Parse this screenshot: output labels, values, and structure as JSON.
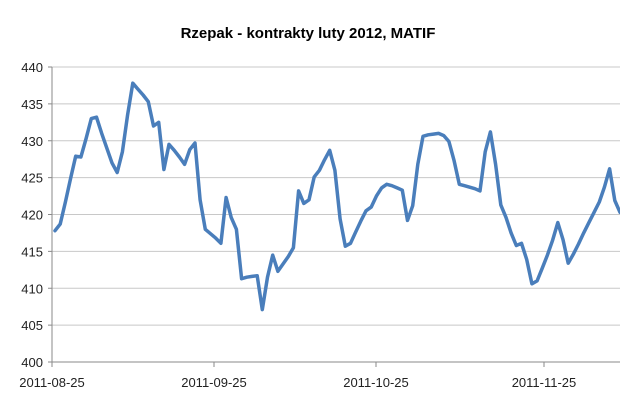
{
  "chart_data": {
    "type": "line",
    "title": "Rzepak - kontrakty luty 2012, MATIF",
    "xlabel": "",
    "ylabel": "",
    "ylim": [
      400,
      440
    ],
    "yticks": [
      400,
      405,
      410,
      415,
      420,
      425,
      430,
      435,
      440
    ],
    "xticks": [
      "2011-08-25",
      "2011-09-25",
      "2011-10-25",
      "2011-11-25"
    ],
    "grid": {
      "horizontal": true,
      "vertical": false
    },
    "legend": "none",
    "line_color": "#4a7ebb",
    "series": [
      {
        "values": [
          417.8,
          418.7,
          421.7,
          424.9,
          427.9,
          427.8,
          430.3,
          433.0,
          433.2,
          431.0,
          429.0,
          427.0,
          425.7,
          428.5,
          433.5,
          437.8,
          437.0,
          436.2,
          435.3,
          432.0,
          432.5,
          426.1,
          429.5,
          428.7,
          427.8,
          426.8,
          428.8,
          429.7,
          422.0,
          418.0,
          417.4,
          416.8,
          416.1,
          422.3,
          419.6,
          418.0,
          411.3,
          411.5,
          411.6,
          411.7,
          407.1,
          411.5,
          414.5,
          412.3,
          413.3,
          414.3,
          415.5,
          423.2,
          421.5,
          422.0,
          425.1,
          426.0,
          427.4,
          428.7,
          426.0,
          419.4,
          415.7,
          416.1,
          417.6,
          419.1,
          420.5,
          421.0,
          422.5,
          423.6,
          424.1,
          423.9,
          423.6,
          423.3,
          419.2,
          421.2,
          426.8,
          430.6,
          430.8,
          430.9,
          431.0,
          430.7,
          429.9,
          427.3,
          424.1,
          423.9,
          423.7,
          423.5,
          423.2,
          428.5,
          431.2,
          426.8,
          421.3,
          419.6,
          417.5,
          415.8,
          416.1,
          413.9,
          410.6,
          411.0,
          412.7,
          414.5,
          416.5,
          418.9,
          416.6,
          413.4,
          414.6,
          416.0,
          417.5,
          418.9,
          420.3,
          421.7,
          423.7,
          426.2,
          421.9,
          420.3
        ]
      }
    ]
  }
}
